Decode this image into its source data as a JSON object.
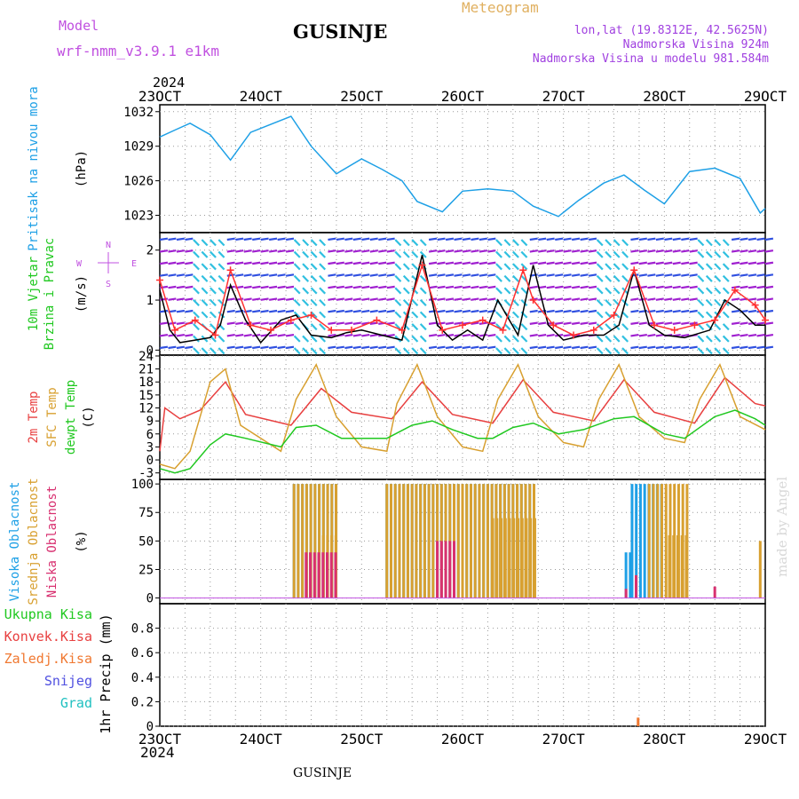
{
  "header": {
    "model_label": "Model",
    "model_name": "wrf-nmm_v3.9.1 e1km",
    "station": "GUSINJE",
    "product": "Meteogram",
    "coords": "lon,lat (19.8312E, 42.5625N)",
    "elevation": "Nadmorska Visina 924m",
    "model_elevation": "Nadmorska Visina u modelu 981.584m",
    "footer_station": "GUSINJE",
    "credit": "made by Angel"
  },
  "colors": {
    "pressure": "#1ea0e6",
    "wind_speed": "#000000",
    "wind_gust": "#ff3030",
    "temp2m": "#e84040",
    "sfc_temp": "#d8a030",
    "dewpoint": "#20c820",
    "high_cloud": "#1ea0e6",
    "mid_cloud": "#d8a030",
    "low_cloud": "#d83070",
    "total_precip": "#20c820",
    "conv_precip": "#e84040",
    "frozen_precip": "#f07830",
    "snow": "#5050e0",
    "graupel": "#20c0c0",
    "model_text": "#c050e0",
    "header_text": "#a040e0",
    "meteogram_text": "#e0b060"
  },
  "chart_data": {
    "x_axis": {
      "year": "2024",
      "ticks": [
        "23OCT",
        "24OCT",
        "25OCT",
        "26OCT",
        "27OCT",
        "28OCT",
        "29OCT"
      ],
      "day_range": [
        23,
        29
      ]
    },
    "panels": [
      {
        "id": "pressure",
        "type": "line",
        "ylabel": "Pritisak na nivou mora",
        "unit": "(hPa)",
        "ylim": [
          1021.5,
          1032.6
        ],
        "yticks": [
          "1023",
          "1026",
          "1029",
          "1032"
        ],
        "series": [
          {
            "key": "pressure",
            "x": [
              23.0,
              23.15,
              23.3,
              23.5,
              23.7,
              23.9,
              24.1,
              24.3,
              24.5,
              24.75,
              25.0,
              25.2,
              25.4,
              25.55,
              25.8,
              26.0,
              26.25,
              26.5,
              26.7,
              26.95,
              27.15,
              27.4,
              27.6,
              27.8,
              28.0,
              28.25,
              28.5,
              28.75,
              28.95,
              29.0
            ],
            "y": [
              1029.8,
              1030.4,
              1031.0,
              1030.0,
              1027.8,
              1030.2,
              1030.9,
              1031.6,
              1029.0,
              1026.6,
              1027.9,
              1027.0,
              1026.0,
              1024.2,
              1023.3,
              1025.1,
              1025.3,
              1025.1,
              1023.8,
              1022.9,
              1024.3,
              1025.8,
              1026.5,
              1025.2,
              1024.0,
              1026.8,
              1027.1,
              1026.2,
              1023.2,
              1023.6
            ]
          }
        ]
      },
      {
        "id": "wind",
        "type": "line",
        "ylabel": [
          "10m Vjetar",
          "Brzina i Pravac"
        ],
        "unit": "(m/s)",
        "ylim": [
          -0.1,
          2.35
        ],
        "yticks": [
          "0",
          "1",
          "2"
        ],
        "compass": [
          "N",
          "E",
          "S",
          "W"
        ],
        "series": [
          {
            "key": "wind_speed",
            "x": [
              23.0,
              23.1,
              23.2,
              23.35,
              23.5,
              23.6,
              23.7,
              23.85,
              24.0,
              24.2,
              24.35,
              24.5,
              24.7,
              24.85,
              25.0,
              25.2,
              25.4,
              25.6,
              25.75,
              25.9,
              26.05,
              26.2,
              26.35,
              26.55,
              26.7,
              26.85,
              27.0,
              27.2,
              27.4,
              27.55,
              27.7,
              27.85,
              28.0,
              28.2,
              28.45,
              28.6,
              28.75,
              28.9,
              29.0
            ],
            "y": [
              1.2,
              0.4,
              0.15,
              0.2,
              0.25,
              0.5,
              1.3,
              0.6,
              0.15,
              0.6,
              0.7,
              0.3,
              0.25,
              0.35,
              0.4,
              0.3,
              0.2,
              1.9,
              0.5,
              0.2,
              0.4,
              0.2,
              1.0,
              0.3,
              1.7,
              0.5,
              0.2,
              0.3,
              0.3,
              0.5,
              1.6,
              0.5,
              0.3,
              0.25,
              0.4,
              1.0,
              0.8,
              0.5,
              0.5
            ]
          },
          {
            "key": "wind_gust",
            "x": [
              23.0,
              23.15,
              23.35,
              23.55,
              23.7,
              23.9,
              24.1,
              24.3,
              24.5,
              24.7,
              24.9,
              25.15,
              25.4,
              25.6,
              25.8,
              26.0,
              26.2,
              26.4,
              26.6,
              26.7,
              26.9,
              27.1,
              27.3,
              27.5,
              27.7,
              27.9,
              28.1,
              28.3,
              28.5,
              28.7,
              28.9,
              29.0
            ],
            "y": [
              1.4,
              0.4,
              0.6,
              0.3,
              1.6,
              0.5,
              0.4,
              0.6,
              0.7,
              0.4,
              0.4,
              0.6,
              0.4,
              1.7,
              0.4,
              0.5,
              0.6,
              0.4,
              1.6,
              1.0,
              0.5,
              0.3,
              0.4,
              0.7,
              1.6,
              0.5,
              0.4,
              0.5,
              0.6,
              1.2,
              0.9,
              0.6
            ]
          }
        ]
      },
      {
        "id": "temperature",
        "type": "line",
        "ylabel": [
          "2m Temp",
          "SFC Temp",
          "dewpt Temp"
        ],
        "unit": "(C)",
        "ylim": [
          -4.5,
          24.2
        ],
        "yticks": [
          "-3",
          "0",
          "3",
          "6",
          "9",
          "12",
          "15",
          "18",
          "21",
          "24"
        ],
        "series": [
          {
            "key": "temp2m",
            "x": [
              23.0,
              23.05,
              23.2,
              23.4,
              23.65,
              23.85,
              24.3,
              24.6,
              24.9,
              25.3,
              25.6,
              25.9,
              26.3,
              26.6,
              26.9,
              27.3,
              27.6,
              27.9,
              28.3,
              28.6,
              28.9,
              29.0
            ],
            "y": [
              2,
              12,
              9.5,
              11.5,
              18,
              10.5,
              8,
              16.5,
              11,
              9.5,
              18,
              10.5,
              8.5,
              18.5,
              11,
              9,
              18.5,
              11,
              8.5,
              19,
              13,
              12.5
            ]
          },
          {
            "key": "sfc_temp",
            "x": [
              23.0,
              23.15,
              23.3,
              23.5,
              23.65,
              23.8,
              24.2,
              24.35,
              24.55,
              24.75,
              25.0,
              25.25,
              25.35,
              25.55,
              25.75,
              26.0,
              26.2,
              26.35,
              26.55,
              26.75,
              27.0,
              27.2,
              27.35,
              27.55,
              27.75,
              28.0,
              28.2,
              28.35,
              28.55,
              28.75,
              29.0
            ],
            "y": [
              -1,
              -2,
              2,
              18,
              21,
              8,
              2,
              14,
              22,
              10,
              3,
              2,
              13,
              22,
              10,
              3,
              2,
              14,
              22,
              10,
              4,
              3,
              14,
              22,
              10,
              5,
              4,
              14,
              22,
              10,
              7
            ]
          },
          {
            "key": "dewpoint",
            "x": [
              23.0,
              23.15,
              23.3,
              23.5,
              23.65,
              23.85,
              24.2,
              24.35,
              24.55,
              24.8,
              25.0,
              25.25,
              25.5,
              25.7,
              25.9,
              26.15,
              26.3,
              26.5,
              26.7,
              26.95,
              27.2,
              27.5,
              27.7,
              28.0,
              28.2,
              28.5,
              28.7,
              28.9,
              29.0
            ],
            "y": [
              -2,
              -3,
              -2,
              3.5,
              6,
              5,
              3,
              7.5,
              8,
              5,
              5,
              5,
              8,
              9,
              7,
              5,
              5,
              7.5,
              8.5,
              6,
              7,
              9.5,
              10,
              6,
              5,
              10,
              11.5,
              9.5,
              8
            ]
          }
        ]
      },
      {
        "id": "clouds",
        "type": "bar",
        "ylabel": [
          "Visoka Oblacnost",
          "Srednja Oblacnost",
          "Niska Oblacnost"
        ],
        "unit": "(%)",
        "ylim": [
          -5,
          104
        ],
        "yticks": [
          "0",
          "25",
          "50",
          "75",
          "100"
        ],
        "series": [
          {
            "key": "high_cloud",
            "segments": [
              [
                24.33,
                24.78,
                100
              ],
              [
                25.25,
                26.72,
                100
              ],
              [
                27.62,
                27.68,
                40
              ],
              [
                27.68,
                28.0,
                100
              ]
            ]
          },
          {
            "key": "mid_cloud",
            "segments": [
              [
                24.33,
                24.78,
                100
              ],
              [
                24.62,
                24.78,
                55
              ],
              [
                25.25,
                26.72,
                100
              ],
              [
                26.3,
                26.72,
                70
              ],
              [
                27.85,
                28.25,
                100
              ],
              [
                28.05,
                28.25,
                55
              ],
              [
                28.95,
                28.97,
                50
              ]
            ]
          },
          {
            "key": "low_cloud",
            "segments": [
              [
                24.45,
                24.78,
                40
              ],
              [
                25.75,
                25.95,
                50
              ],
              [
                27.62,
                27.66,
                8
              ],
              [
                27.72,
                27.76,
                20
              ],
              [
                28.5,
                28.52,
                10
              ]
            ]
          }
        ]
      },
      {
        "id": "precip",
        "type": "bar",
        "ylabel": [
          "Ukupna Kisa",
          "Konvek.Kisa",
          "Zaledj.Kisa",
          "Snijeg",
          "Grad"
        ],
        "unit": "1hr Precip (mm)",
        "ylim": [
          0,
          1.0
        ],
        "yticks": [
          "0",
          "0.2",
          "0.4",
          "0.6",
          "0.8"
        ],
        "series": [
          {
            "key": "frozen_precip",
            "x": [
              27.74
            ],
            "y": [
              0.07
            ]
          }
        ]
      }
    ]
  }
}
